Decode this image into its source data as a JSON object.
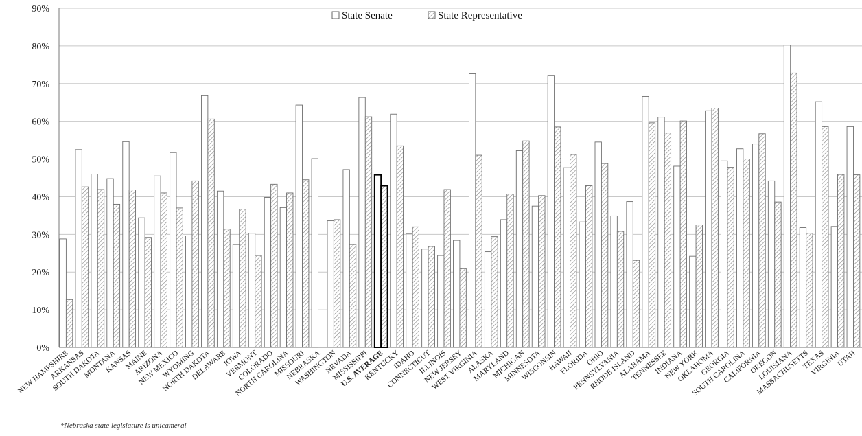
{
  "chart_data": {
    "type": "bar",
    "title": "",
    "xlabel": "",
    "ylabel": "",
    "ylim": [
      0,
      90
    ],
    "y_tick_format": "percent",
    "y_ticks": [
      "0%",
      "10%",
      "20%",
      "30%",
      "40%",
      "50%",
      "60%",
      "70%",
      "80%",
      "90%"
    ],
    "grid": "horizontal",
    "legend_placement": "top-center",
    "highlight_category": "U.S. AVERAGE",
    "categories": [
      "NEW HAMPSHIRE",
      "ARKANSAS",
      "SOUTH DAKOTA",
      "MONTANA",
      "KANSAS",
      "MAINE",
      "ARIZONA",
      "NEW MEXICO",
      "WYOMING",
      "NORTH DAKOTA",
      "DELAWARE",
      "IOWA",
      "VERMONT",
      "COLORADO",
      "NORTH CAROLINA",
      "MISSOURI",
      "NEBRASKA",
      "WASHINGTON",
      "NEVADA",
      "MISSISSIPPI",
      "U.S. AVERAGE",
      "KENTUCKY",
      "IDAHO",
      "CONNECTICUT",
      "ILLINOIS",
      "NEW JERSEY",
      "WEST VIRGINIA",
      "ALASKA",
      "MARYLAND",
      "MICHIGAN",
      "MINNESOTA",
      "WISCONSIN",
      "HAWAII",
      "FLORIDA",
      "OHIO",
      "PENNSYLVANIA",
      "RHODE ISLAND",
      "ALABAMA",
      "TENNESSEE",
      "INDIANA",
      "NEW YORK",
      "OKLAHOMA",
      "GEORGIA",
      "SOUTH CAROLINA",
      "CALIFORNIA",
      "OREGON",
      "LOUISIANA",
      "MASSACHUSETTS",
      "TEXAS",
      "VIRGINIA",
      "UTAH"
    ],
    "series": [
      {
        "name": "State Senate",
        "pattern": "white",
        "values": [
          28.8,
          52.5,
          46,
          44.8,
          54.6,
          34.4,
          45.5,
          51.7,
          29.6,
          66.8,
          41.5,
          27.3,
          30.3,
          39.8,
          37.1,
          64.3,
          50.1,
          33.6,
          47.2,
          66.3,
          45.8,
          61.9,
          30.1,
          26.1,
          24.4,
          28.4,
          72.6,
          25.4,
          33.9,
          52.2,
          37.5,
          72.2,
          47.7,
          33.3,
          54.5,
          34.9,
          38.7,
          66.6,
          61.1,
          48.1,
          24.2,
          62.8,
          49.5,
          52.7,
          54,
          44.2,
          80.2,
          31.8,
          65.2,
          32.1,
          58.6
        ]
      },
      {
        "name": "State Representative",
        "pattern": "hatched",
        "values": [
          12.7,
          42.6,
          41.9,
          38,
          41.8,
          29.2,
          41,
          37,
          44.2,
          60.6,
          31.4,
          36.7,
          24.4,
          43.3,
          41,
          44.5,
          null,
          33.9,
          27.3,
          61.2,
          42.9,
          53.5,
          32,
          26.8,
          41.9,
          20.9,
          51,
          29.4,
          40.7,
          54.8,
          40.3,
          58.5,
          51.2,
          42.9,
          48.8,
          30.8,
          23.1,
          59.6,
          56.9,
          60.1,
          32.5,
          63.5,
          47.8,
          50,
          56.7,
          38.6,
          72.8,
          30.3,
          58.6,
          45.9,
          45.8
        ]
      }
    ]
  },
  "footnote": "*Nebraska state legislature is unicameral"
}
